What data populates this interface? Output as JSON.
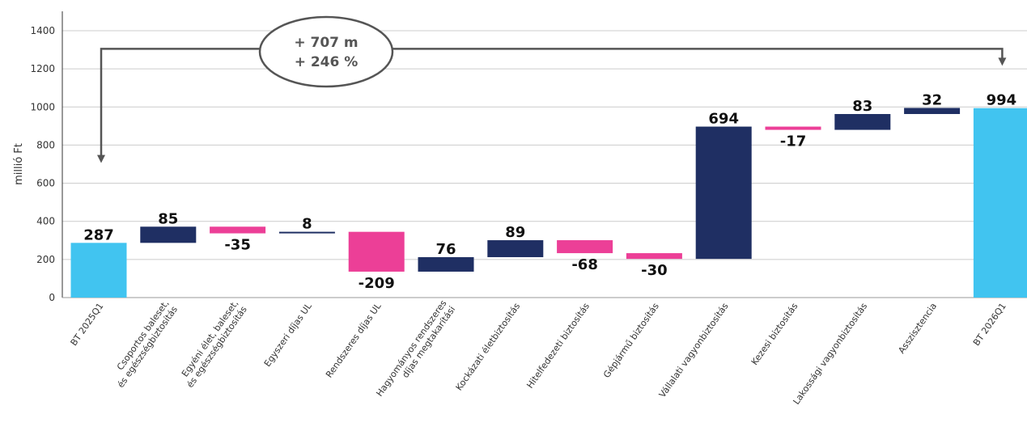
{
  "chart_data": {
    "type": "waterfall",
    "ylabel": "millió Ft",
    "ylim": [
      0,
      1400
    ],
    "yticks": [
      0,
      200,
      400,
      600,
      800,
      1000,
      1200,
      1400
    ],
    "grid": true,
    "categories": [
      "BT 2025Q1",
      "Csoportos baleset,\nés egészségbiztosítás",
      "Egyéni élet, baleset,\nés egészségbiztosítás",
      "Egyszeri díjas UL",
      "Rendszeres díjas UL",
      "Hagyományos rendszeres\ndíjas megtakarítási",
      "Kockázati életbiztosítás",
      "Hitelfedezeti biztosítás",
      "Gépjármű biztosítás",
      "Vállalati vagyonbiztosítás",
      "Kezesi biztosítás",
      "Lakossági vagyonbiztosítás",
      "Asszisztencia",
      "BT 2026Q1"
    ],
    "values": [
      287,
      85,
      -35,
      8,
      -209,
      76,
      89,
      -68,
      -30,
      694,
      -17,
      83,
      32,
      994
    ],
    "labels": [
      "287",
      "85",
      "-35",
      "8",
      "-209",
      "76",
      "89",
      "-68",
      "-30",
      "694",
      "-17",
      "83",
      "32",
      "994"
    ],
    "kinds": [
      "total",
      "delta",
      "delta",
      "delta",
      "delta",
      "delta",
      "delta",
      "delta",
      "delta",
      "delta",
      "delta",
      "delta",
      "delta",
      "total"
    ],
    "colors": {
      "total": "#41c4f0",
      "increase": "#1f2f63",
      "decrease": "#ec3f97",
      "grid": "#cccccc",
      "axis": "#333333",
      "callout": "#555555"
    },
    "annotation": {
      "line1": "+ 707 m",
      "line2": "+ 246 %"
    }
  }
}
